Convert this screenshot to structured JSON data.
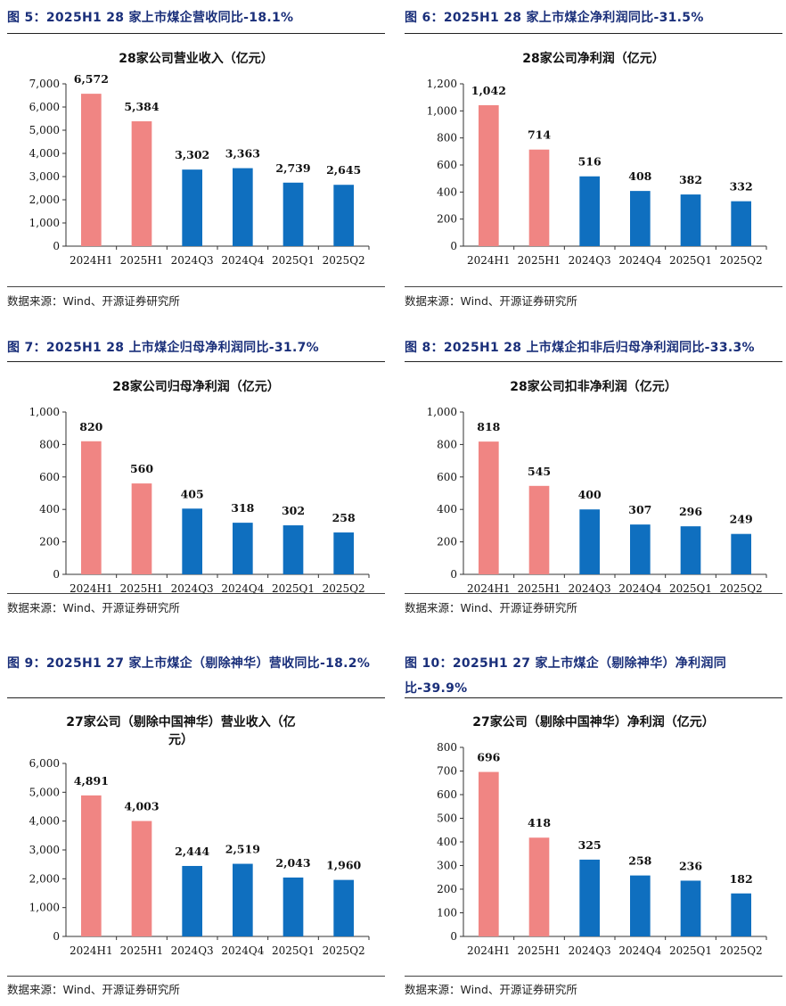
{
  "colors": {
    "highlight": "#f08583",
    "normal": "#0f6fbf",
    "title": "#1a2f7a"
  },
  "panels": [
    {
      "fig_title": "图 5：2025H1 28 家上市煤企营收同比-18.1%",
      "source": "数据来源：Wind、开源证券研究所",
      "chart_data": {
        "type": "bar",
        "title": "28家公司营业收入（亿元）",
        "categories": [
          "2024H1",
          "2025H1",
          "2024Q3",
          "2024Q4",
          "2025Q1",
          "2025Q2"
        ],
        "values": [
          6572,
          5384,
          3302,
          3363,
          2739,
          2645
        ],
        "value_labels": [
          "6,572",
          "5,384",
          "3,302",
          "3,363",
          "2,739",
          "2,645"
        ],
        "yticks": [
          "0",
          "1,000",
          "2,000",
          "3,000",
          "4,000",
          "5,000",
          "6,000",
          "7,000"
        ],
        "ylim": [
          0,
          7000
        ],
        "highlight": [
          0,
          1
        ]
      }
    },
    {
      "fig_title": "图 6：2025H1 28 家上市煤企净利润同比-31.5%",
      "source": "数据来源：Wind、开源证券研究所",
      "chart_data": {
        "type": "bar",
        "title": "28家公司净利润（亿元）",
        "categories": [
          "2024H1",
          "2025H1",
          "2024Q3",
          "2024Q4",
          "2025Q1",
          "2025Q2"
        ],
        "values": [
          1042,
          714,
          516,
          408,
          382,
          332
        ],
        "value_labels": [
          "1,042",
          "714",
          "516",
          "408",
          "382",
          "332"
        ],
        "yticks": [
          "0",
          "200",
          "400",
          "600",
          "800",
          "1,000",
          "1,200"
        ],
        "ylim": [
          0,
          1200
        ],
        "highlight": [
          0,
          1
        ]
      }
    },
    {
      "fig_title": "图 7：2025H1 28 上市煤企归母净利润同比-31.7%",
      "source": "数据来源：Wind、开源证券研究所",
      "chart_data": {
        "type": "bar",
        "title": "28家公司归母净利润（亿元）",
        "categories": [
          "2024H1",
          "2025H1",
          "2024Q3",
          "2024Q4",
          "2025Q1",
          "2025Q2"
        ],
        "values": [
          820,
          560,
          405,
          318,
          302,
          258
        ],
        "value_labels": [
          "820",
          "560",
          "405",
          "318",
          "302",
          "258"
        ],
        "yticks": [
          "0",
          "200",
          "400",
          "600",
          "800",
          "1,000"
        ],
        "ylim": [
          0,
          1000
        ],
        "highlight": [
          0,
          1
        ]
      }
    },
    {
      "fig_title": "图 8：2025H1 28 上市煤企扣非后归母净利润同比-33.3%",
      "source": "数据来源：Wind、开源证券研究所",
      "chart_data": {
        "type": "bar",
        "title": "28家公司扣非净利润（亿元）",
        "categories": [
          "2024H1",
          "2025H1",
          "2024Q3",
          "2024Q4",
          "2025Q1",
          "2025Q2"
        ],
        "values": [
          818,
          545,
          400,
          307,
          296,
          249
        ],
        "value_labels": [
          "818",
          "545",
          "400",
          "307",
          "296",
          "249"
        ],
        "yticks": [
          "0",
          "200",
          "400",
          "600",
          "800",
          "1,000"
        ],
        "ylim": [
          0,
          1000
        ],
        "highlight": [
          0,
          1
        ]
      }
    },
    {
      "fig_title": "图 9：2025H1 27 家上市煤企（剔除神华）营收同比-18.2%",
      "source": "数据来源：Wind、开源证券研究所",
      "chart_data": {
        "type": "bar",
        "title": "27家公司（剔除中国神华）营业收入（亿元）",
        "categories": [
          "2024H1",
          "2025H1",
          "2024Q3",
          "2024Q4",
          "2025Q1",
          "2025Q2"
        ],
        "values": [
          4891,
          4003,
          2444,
          2519,
          2043,
          1960
        ],
        "value_labels": [
          "4,891",
          "4,003",
          "2,444",
          "2,519",
          "2,043",
          "1,960"
        ],
        "yticks": [
          "0",
          "1,000",
          "2,000",
          "3,000",
          "4,000",
          "5,000",
          "6,000"
        ],
        "ylim": [
          0,
          6000
        ],
        "highlight": [
          0,
          1
        ]
      }
    },
    {
      "fig_title": "图 10：2025H1 27 家上市煤企（剔除神华）净利润同比-39.9%",
      "source": "数据来源：Wind、开源证券研究所",
      "chart_data": {
        "type": "bar",
        "title": "27家公司（剔除中国神华）净利润（亿元）",
        "categories": [
          "2024H1",
          "2025H1",
          "2024Q3",
          "2024Q4",
          "2025Q1",
          "2025Q2"
        ],
        "values": [
          696,
          418,
          325,
          258,
          236,
          182
        ],
        "value_labels": [
          "696",
          "418",
          "325",
          "258",
          "236",
          "182"
        ],
        "yticks": [
          "0",
          "100",
          "200",
          "300",
          "400",
          "500",
          "600",
          "700",
          "800"
        ],
        "ylim": [
          0,
          800
        ],
        "highlight": [
          0,
          1
        ]
      }
    }
  ]
}
